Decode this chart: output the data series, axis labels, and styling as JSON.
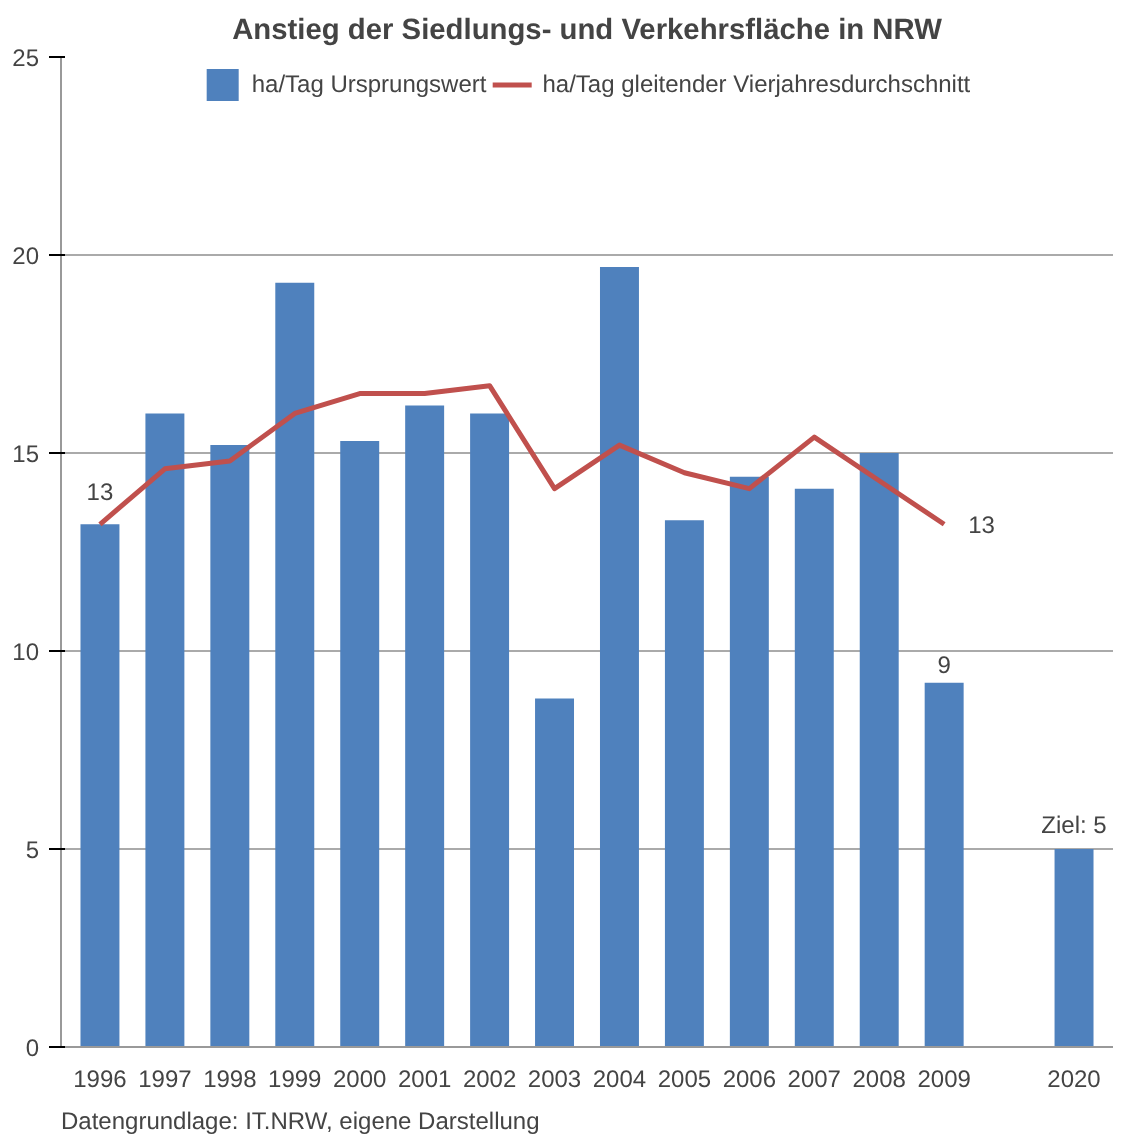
{
  "chart_data": {
    "type": "bar",
    "title": "Anstieg der Siedlungs- und Verkehrsfläche in NRW",
    "categories": [
      "1996",
      "1997",
      "1998",
      "1999",
      "2000",
      "2001",
      "2002",
      "2003",
      "2004",
      "2005",
      "2006",
      "2007",
      "2008",
      "2009",
      null,
      "2020"
    ],
    "series": [
      {
        "name": "ha/Tag Ursprungswert",
        "color": "#4f81bd",
        "values": [
          13.2,
          16.0,
          15.2,
          19.3,
          15.3,
          16.2,
          16.0,
          8.8,
          19.7,
          13.3,
          14.4,
          14.1,
          15.0,
          9.2,
          null,
          5
        ],
        "value_labels": [
          null,
          null,
          null,
          null,
          null,
          null,
          null,
          null,
          null,
          null,
          null,
          null,
          null,
          "9",
          null,
          "Ziel: 5"
        ]
      },
      {
        "name": "ha/Tag gleitender Vierjahresdurchschnitt",
        "type": "line",
        "color": "#c0504d",
        "values": [
          13.2,
          14.6,
          14.8,
          16.0,
          16.5,
          16.5,
          16.7,
          14.1,
          15.2,
          14.5,
          14.1,
          15.4,
          14.3,
          13.2,
          null,
          null
        ],
        "value_labels": [
          "13",
          null,
          null,
          null,
          null,
          null,
          null,
          null,
          null,
          null,
          null,
          null,
          null,
          "13",
          null,
          null
        ]
      }
    ],
    "ylim": [
      0,
      25
    ],
    "yticks": [
      0,
      5,
      10,
      15,
      20,
      25
    ],
    "grid": "y",
    "legend": "top",
    "annotations": [
      "Datengrundlage: IT.NRW, eigene Darstellung"
    ]
  }
}
